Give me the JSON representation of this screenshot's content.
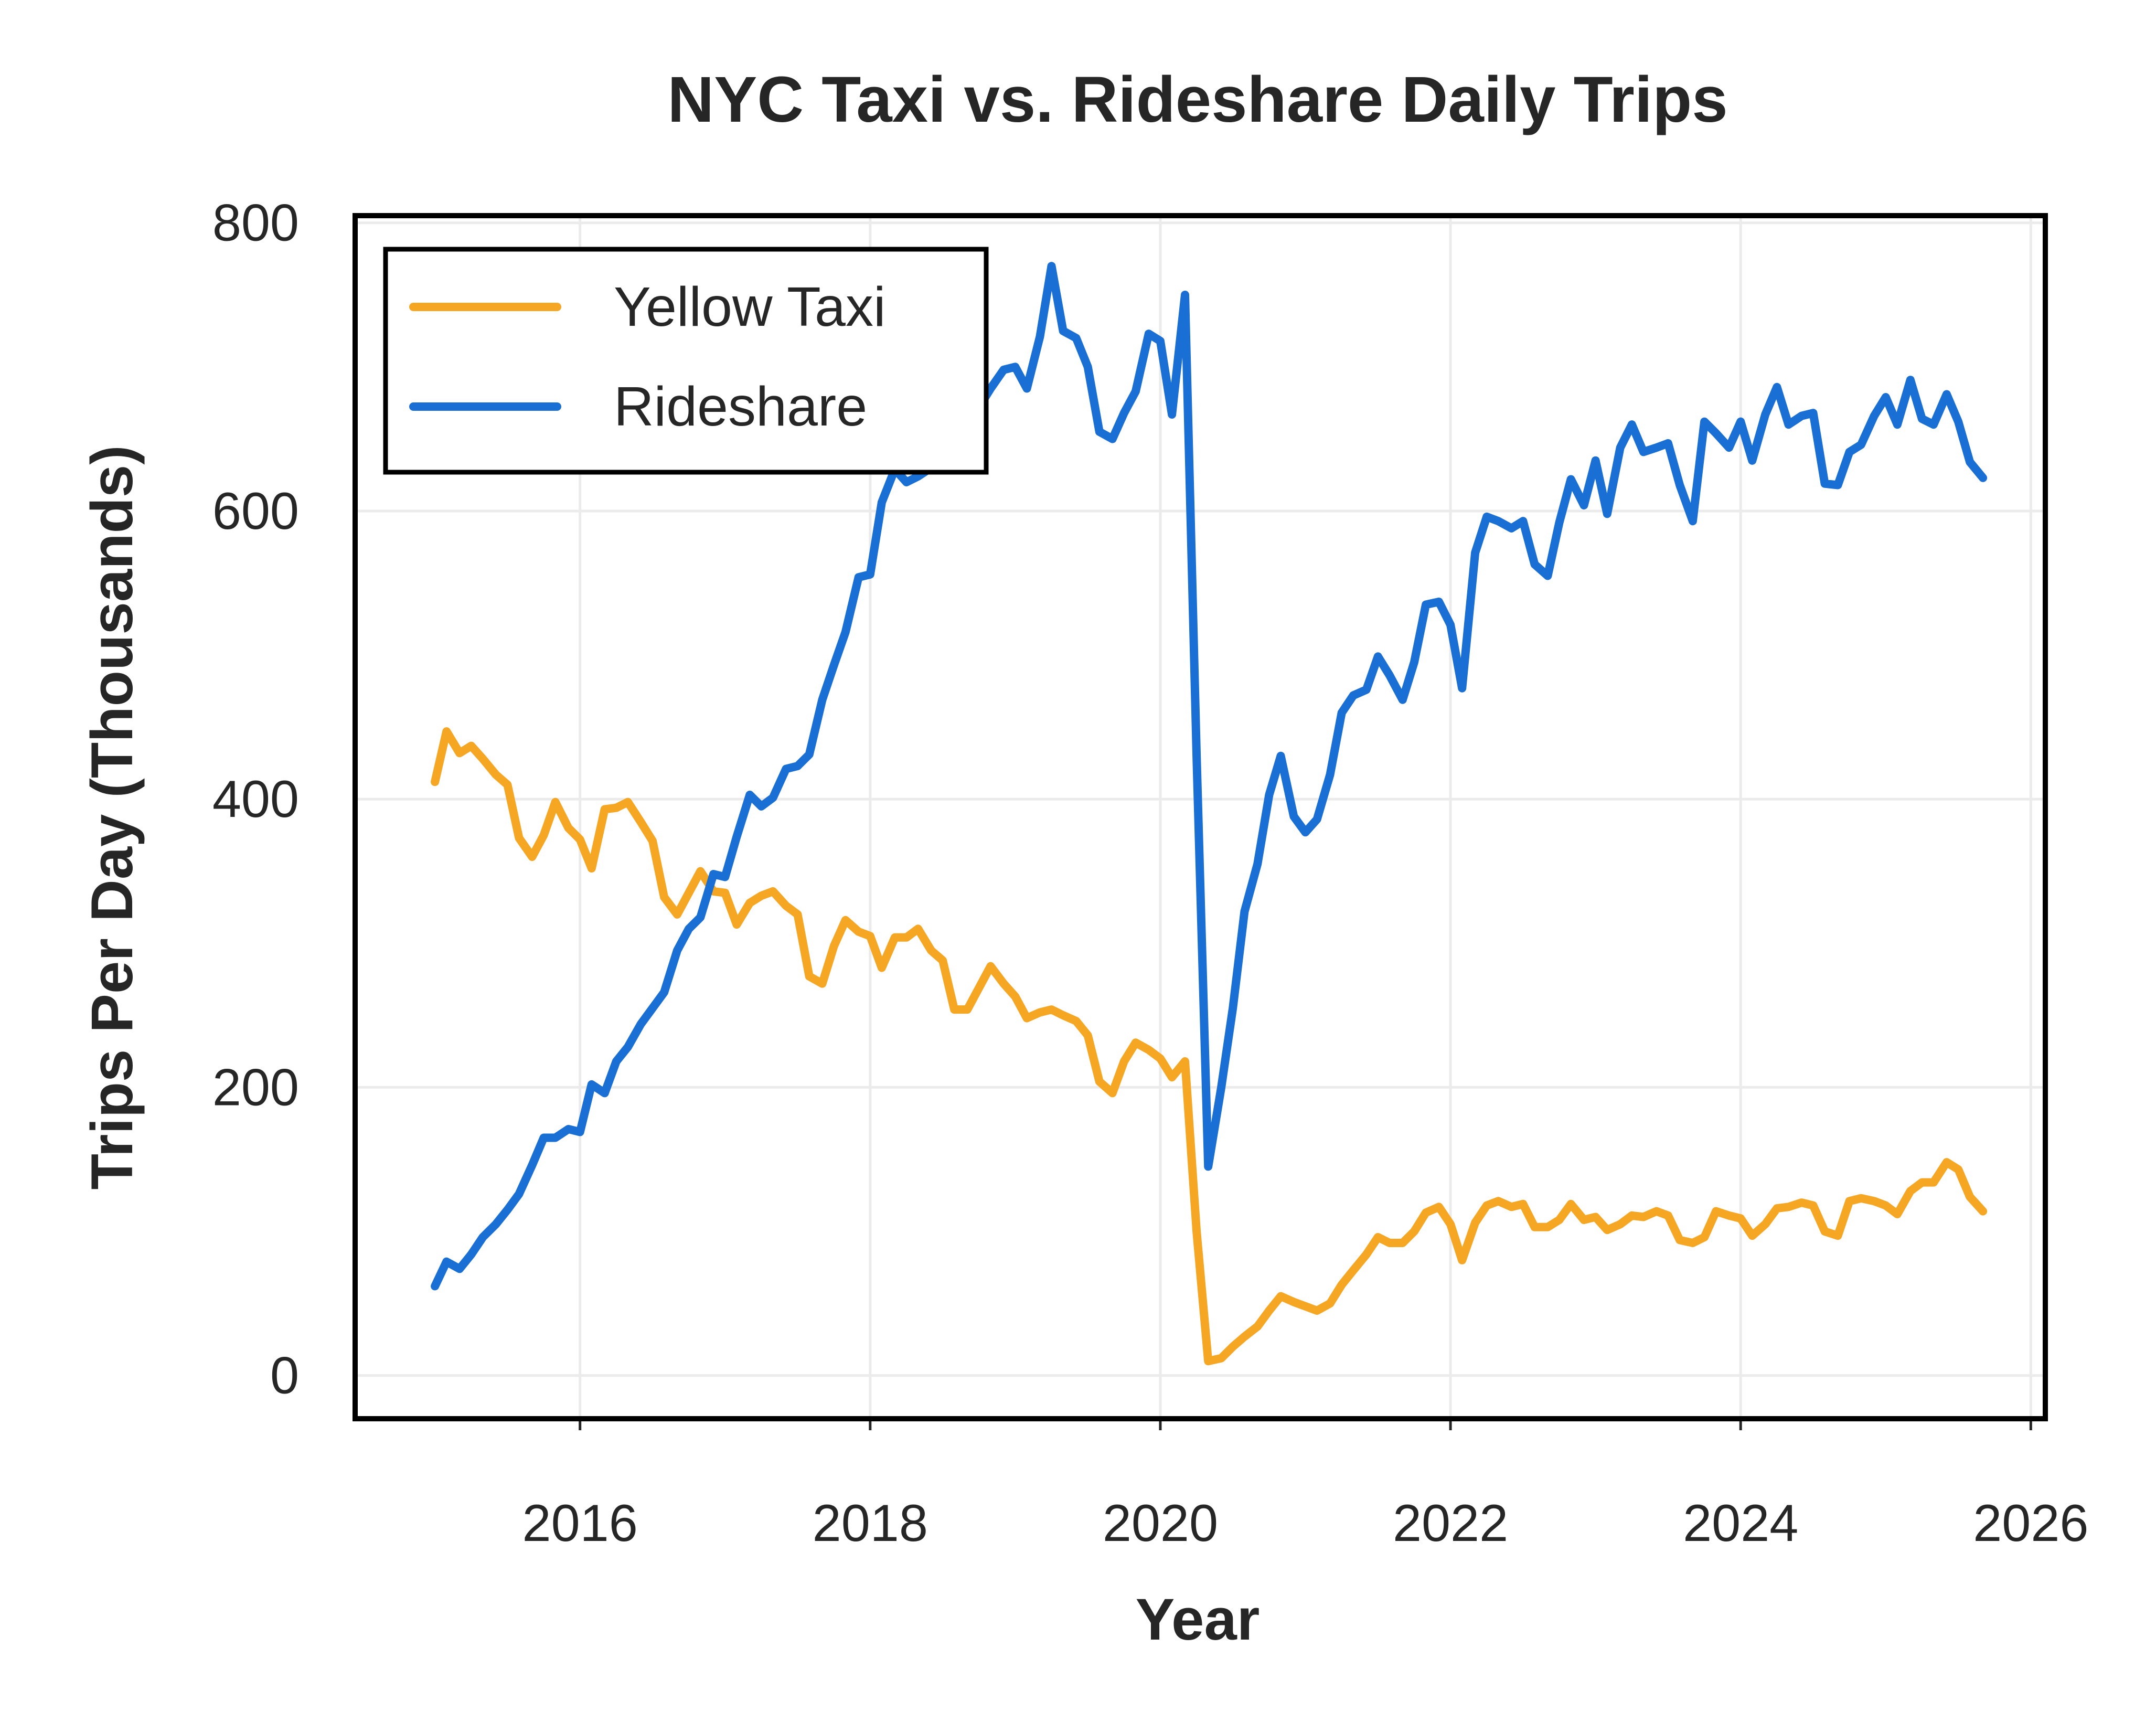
{
  "chart_data": {
    "type": "line",
    "title": "NYC Taxi vs. Rideshare Daily Trips",
    "xlabel": "Year",
    "ylabel": "Trips Per Day (Thousands)",
    "xlim": [
      2014.45,
      2026.1
    ],
    "ylim": [
      -30,
      805
    ],
    "x_ticks": [
      2016,
      2018,
      2020,
      2022,
      2024,
      2026
    ],
    "y_ticks": [
      0,
      200,
      400,
      600,
      800
    ],
    "grid": true,
    "legend_position": "upper left",
    "series": [
      {
        "name": "Yellow Taxi",
        "color": "#F5A623",
        "points": [
          [
            2015.0,
            412
          ],
          [
            2015.08,
            447
          ],
          [
            2015.17,
            432
          ],
          [
            2015.25,
            437
          ],
          [
            2015.33,
            428
          ],
          [
            2015.42,
            417
          ],
          [
            2015.5,
            410
          ],
          [
            2015.58,
            373
          ],
          [
            2015.67,
            360
          ],
          [
            2015.75,
            375
          ],
          [
            2015.83,
            398
          ],
          [
            2015.92,
            380
          ],
          [
            2016.0,
            372
          ],
          [
            2016.08,
            352
          ],
          [
            2016.17,
            393
          ],
          [
            2016.25,
            394
          ],
          [
            2016.33,
            398
          ],
          [
            2016.42,
            384
          ],
          [
            2016.5,
            371
          ],
          [
            2016.58,
            332
          ],
          [
            2016.67,
            320
          ],
          [
            2016.75,
            335
          ],
          [
            2016.83,
            350
          ],
          [
            2016.92,
            336
          ],
          [
            2017.0,
            335
          ],
          [
            2017.08,
            313
          ],
          [
            2017.17,
            328
          ],
          [
            2017.25,
            333
          ],
          [
            2017.33,
            336
          ],
          [
            2017.42,
            326
          ],
          [
            2017.5,
            320
          ],
          [
            2017.58,
            277
          ],
          [
            2017.67,
            272
          ],
          [
            2017.75,
            298
          ],
          [
            2017.83,
            316
          ],
          [
            2017.92,
            308
          ],
          [
            2018.0,
            305
          ],
          [
            2018.08,
            283
          ],
          [
            2018.17,
            304
          ],
          [
            2018.25,
            304
          ],
          [
            2018.33,
            310
          ],
          [
            2018.42,
            295
          ],
          [
            2018.5,
            288
          ],
          [
            2018.58,
            254
          ],
          [
            2018.67,
            254
          ],
          [
            2018.75,
            269
          ],
          [
            2018.83,
            284
          ],
          [
            2018.92,
            272
          ],
          [
            2019.0,
            263
          ],
          [
            2019.08,
            248
          ],
          [
            2019.17,
            252
          ],
          [
            2019.25,
            254
          ],
          [
            2019.33,
            250
          ],
          [
            2019.42,
            246
          ],
          [
            2019.5,
            236
          ],
          [
            2019.58,
            204
          ],
          [
            2019.67,
            196
          ],
          [
            2019.75,
            218
          ],
          [
            2019.83,
            231
          ],
          [
            2019.92,
            226
          ],
          [
            2020.0,
            220
          ],
          [
            2020.08,
            207
          ],
          [
            2020.17,
            218
          ],
          [
            2020.25,
            100
          ],
          [
            2020.33,
            10
          ],
          [
            2020.42,
            12
          ],
          [
            2020.5,
            20
          ],
          [
            2020.58,
            27
          ],
          [
            2020.67,
            34
          ],
          [
            2020.75,
            45
          ],
          [
            2020.83,
            55
          ],
          [
            2020.92,
            51
          ],
          [
            2021.0,
            48
          ],
          [
            2021.08,
            45
          ],
          [
            2021.17,
            50
          ],
          [
            2021.25,
            63
          ],
          [
            2021.33,
            73
          ],
          [
            2021.42,
            84
          ],
          [
            2021.5,
            96
          ],
          [
            2021.58,
            92
          ],
          [
            2021.67,
            92
          ],
          [
            2021.75,
            100
          ],
          [
            2021.83,
            113
          ],
          [
            2021.92,
            117
          ],
          [
            2022.0,
            105
          ],
          [
            2022.08,
            80
          ],
          [
            2022.17,
            106
          ],
          [
            2022.25,
            118
          ],
          [
            2022.33,
            121
          ],
          [
            2022.42,
            117
          ],
          [
            2022.5,
            119
          ],
          [
            2022.58,
            103
          ],
          [
            2022.67,
            103
          ],
          [
            2022.75,
            108
          ],
          [
            2022.83,
            119
          ],
          [
            2022.92,
            108
          ],
          [
            2023.0,
            110
          ],
          [
            2023.08,
            101
          ],
          [
            2023.17,
            105
          ],
          [
            2023.25,
            111
          ],
          [
            2023.33,
            110
          ],
          [
            2023.42,
            114
          ],
          [
            2023.5,
            111
          ],
          [
            2023.58,
            94
          ],
          [
            2023.67,
            92
          ],
          [
            2023.75,
            96
          ],
          [
            2023.83,
            114
          ],
          [
            2023.92,
            111
          ],
          [
            2024.0,
            109
          ],
          [
            2024.08,
            97
          ],
          [
            2024.17,
            105
          ],
          [
            2024.25,
            116
          ],
          [
            2024.33,
            117
          ],
          [
            2024.42,
            120
          ],
          [
            2024.5,
            118
          ],
          [
            2024.58,
            100
          ],
          [
            2024.67,
            97
          ],
          [
            2024.75,
            121
          ],
          [
            2024.83,
            123
          ],
          [
            2024.92,
            121
          ],
          [
            2025.0,
            118
          ],
          [
            2025.08,
            112
          ],
          [
            2025.17,
            128
          ],
          [
            2025.25,
            134
          ],
          [
            2025.33,
            134
          ],
          [
            2025.42,
            148
          ],
          [
            2025.5,
            143
          ],
          [
            2025.58,
            124
          ],
          [
            2025.67,
            114
          ]
        ]
      },
      {
        "name": "Rideshare",
        "color": "#1A6FD4",
        "points": [
          [
            2015.0,
            62
          ],
          [
            2015.08,
            79
          ],
          [
            2015.17,
            74
          ],
          [
            2015.25,
            84
          ],
          [
            2015.33,
            96
          ],
          [
            2015.42,
            105
          ],
          [
            2015.5,
            115
          ],
          [
            2015.58,
            126
          ],
          [
            2015.67,
            146
          ],
          [
            2015.75,
            165
          ],
          [
            2015.83,
            165
          ],
          [
            2015.92,
            171
          ],
          [
            2016.0,
            169
          ],
          [
            2016.08,
            202
          ],
          [
            2016.17,
            196
          ],
          [
            2016.25,
            218
          ],
          [
            2016.33,
            228
          ],
          [
            2016.42,
            244
          ],
          [
            2016.5,
            255
          ],
          [
            2016.58,
            266
          ],
          [
            2016.67,
            295
          ],
          [
            2016.75,
            310
          ],
          [
            2016.83,
            318
          ],
          [
            2016.92,
            348
          ],
          [
            2017.0,
            346
          ],
          [
            2017.08,
            374
          ],
          [
            2017.17,
            403
          ],
          [
            2017.25,
            395
          ],
          [
            2017.33,
            401
          ],
          [
            2017.42,
            421
          ],
          [
            2017.5,
            423
          ],
          [
            2017.58,
            431
          ],
          [
            2017.67,
            469
          ],
          [
            2017.75,
            493
          ],
          [
            2017.83,
            516
          ],
          [
            2017.92,
            554
          ],
          [
            2018.0,
            556
          ],
          [
            2018.08,
            606
          ],
          [
            2018.17,
            629
          ],
          [
            2018.25,
            620
          ],
          [
            2018.33,
            624
          ],
          [
            2018.42,
            630
          ],
          [
            2018.5,
            636
          ],
          [
            2018.58,
            658
          ],
          [
            2018.67,
            666
          ],
          [
            2018.75,
            672
          ],
          [
            2018.83,
            685
          ],
          [
            2018.92,
            698
          ],
          [
            2019.0,
            700
          ],
          [
            2019.08,
            685
          ],
          [
            2019.17,
            721
          ],
          [
            2019.25,
            770
          ],
          [
            2019.33,
            725
          ],
          [
            2019.42,
            720
          ],
          [
            2019.5,
            700
          ],
          [
            2019.58,
            655
          ],
          [
            2019.67,
            650
          ],
          [
            2019.75,
            668
          ],
          [
            2019.83,
            683
          ],
          [
            2019.92,
            723
          ],
          [
            2020.0,
            718
          ],
          [
            2020.08,
            667
          ],
          [
            2020.17,
            750
          ],
          [
            2020.25,
            430
          ],
          [
            2020.33,
            145
          ],
          [
            2020.42,
            200
          ],
          [
            2020.5,
            255
          ],
          [
            2020.58,
            322
          ],
          [
            2020.67,
            355
          ],
          [
            2020.75,
            403
          ],
          [
            2020.83,
            430
          ],
          [
            2020.92,
            388
          ],
          [
            2021.0,
            377
          ],
          [
            2021.08,
            386
          ],
          [
            2021.17,
            417
          ],
          [
            2021.25,
            460
          ],
          [
            2021.33,
            472
          ],
          [
            2021.42,
            476
          ],
          [
            2021.5,
            499
          ],
          [
            2021.58,
            486
          ],
          [
            2021.67,
            469
          ],
          [
            2021.75,
            495
          ],
          [
            2021.83,
            535
          ],
          [
            2021.92,
            537
          ],
          [
            2022.0,
            521
          ],
          [
            2022.08,
            477
          ],
          [
            2022.17,
            571
          ],
          [
            2022.25,
            596
          ],
          [
            2022.33,
            593
          ],
          [
            2022.42,
            588
          ],
          [
            2022.5,
            593
          ],
          [
            2022.58,
            563
          ],
          [
            2022.67,
            555
          ],
          [
            2022.75,
            592
          ],
          [
            2022.83,
            622
          ],
          [
            2022.92,
            604
          ],
          [
            2023.0,
            635
          ],
          [
            2023.08,
            598
          ],
          [
            2023.17,
            644
          ],
          [
            2023.25,
            660
          ],
          [
            2023.33,
            641
          ],
          [
            2023.42,
            644
          ],
          [
            2023.5,
            647
          ],
          [
            2023.58,
            618
          ],
          [
            2023.67,
            593
          ],
          [
            2023.75,
            662
          ],
          [
            2023.83,
            654
          ],
          [
            2023.92,
            644
          ],
          [
            2024.0,
            662
          ],
          [
            2024.08,
            635
          ],
          [
            2024.17,
            667
          ],
          [
            2024.25,
            686
          ],
          [
            2024.33,
            660
          ],
          [
            2024.42,
            666
          ],
          [
            2024.5,
            668
          ],
          [
            2024.58,
            619
          ],
          [
            2024.67,
            618
          ],
          [
            2024.75,
            641
          ],
          [
            2024.83,
            646
          ],
          [
            2024.92,
            666
          ],
          [
            2025.0,
            679
          ],
          [
            2025.08,
            660
          ],
          [
            2025.17,
            691
          ],
          [
            2025.25,
            664
          ],
          [
            2025.33,
            660
          ],
          [
            2025.42,
            681
          ],
          [
            2025.5,
            662
          ],
          [
            2025.58,
            634
          ],
          [
            2025.67,
            623
          ]
        ]
      }
    ]
  }
}
